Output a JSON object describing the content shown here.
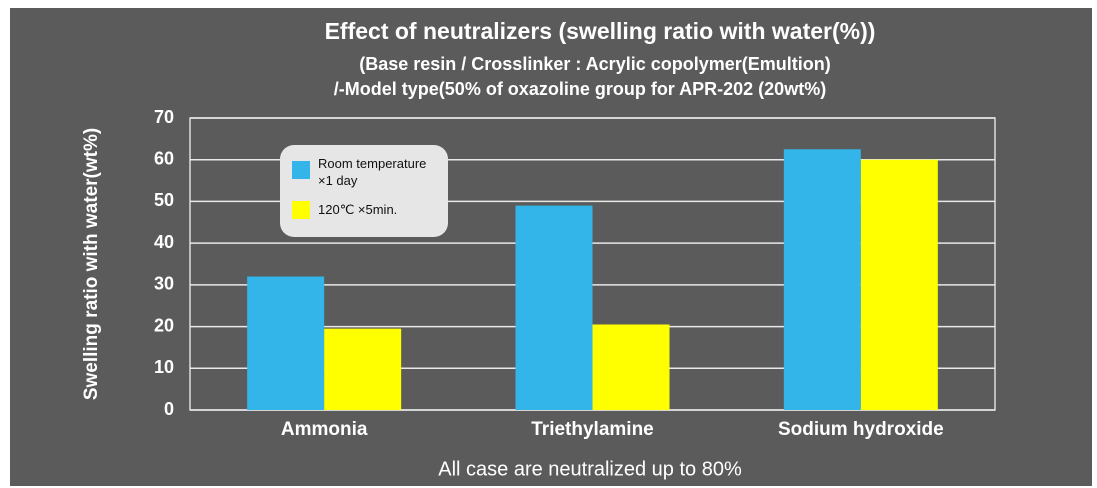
{
  "chart_data": {
    "type": "bar",
    "title": "Effect  of neutralizers (swelling ratio with water(%))",
    "subtitle": [
      "(Base resin / Crosslinker : Acrylic copolymer(Emultion)",
      "/-Model type(50% of oxazoline group for  APR-202  (20wt%)"
    ],
    "y_label": "Swelling ratio with water(wt%)",
    "annotation": "All case are neutralized up to 80%",
    "categories": [
      "Ammonia",
      "Triethylamine",
      "Sodium hydroxide"
    ],
    "series": [
      {
        "name": "Room temperature ×1 day",
        "color": "#33b5ea",
        "values": [
          32,
          49,
          62.5
        ]
      },
      {
        "name": "120℃ ×5min.",
        "color": "#ffff00",
        "values": [
          19.5,
          20.5,
          60
        ]
      }
    ],
    "ylim": [
      0,
      70
    ],
    "yticks": [
      0,
      10,
      20,
      30,
      40,
      50,
      60,
      70
    ],
    "grid": true,
    "legend": "upper left"
  }
}
